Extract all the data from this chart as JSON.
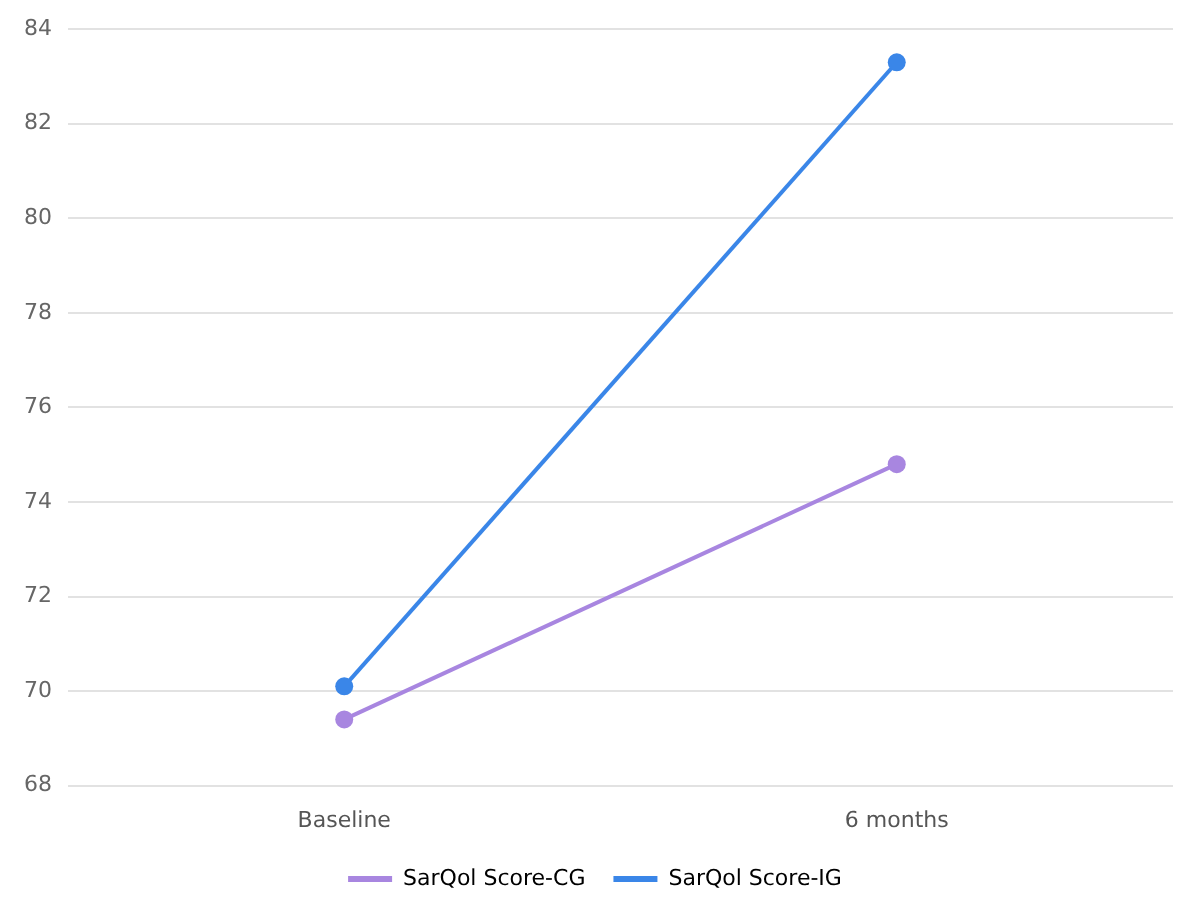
{
  "chart_data": {
    "type": "line",
    "categories": [
      "Baseline",
      "6 months"
    ],
    "series": [
      {
        "name": "SarQol Score-CG",
        "color": "#a886e0",
        "values": [
          69.4,
          74.8
        ]
      },
      {
        "name": "SarQol Score-IG",
        "color": "#3a86e8",
        "values": [
          70.1,
          83.3
        ]
      }
    ],
    "ylim": [
      68,
      84
    ],
    "yticks": [
      68,
      70,
      72,
      74,
      76,
      78,
      80,
      82,
      84
    ],
    "grid": "y",
    "legend": "bottom",
    "marker": "circle",
    "line_style": "solid"
  }
}
